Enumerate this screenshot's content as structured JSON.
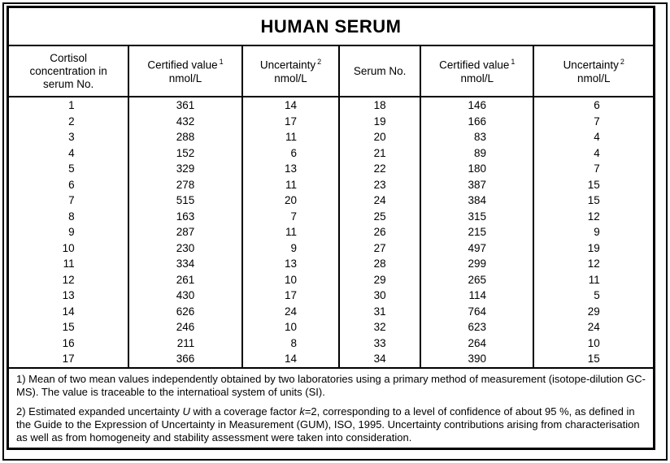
{
  "title": "HUMAN SERUM",
  "colors": {
    "border": "#000000",
    "background": "#ffffff",
    "text": "#000000"
  },
  "table": {
    "columns": [
      {
        "label": "Cortisol concentration in serum No.",
        "sup": "",
        "unit": ""
      },
      {
        "label": "Certified value",
        "sup": "1",
        "unit": "nmol/L"
      },
      {
        "label": "Uncertainty",
        "sup": "2",
        "unit": "nmol/L"
      },
      {
        "label": "Serum No.",
        "sup": "",
        "unit": ""
      },
      {
        "label": "Certified value",
        "sup": "1",
        "unit": "nmol/L"
      },
      {
        "label": "Uncertainty",
        "sup": "2",
        "unit": "nmol/L"
      }
    ],
    "rows": [
      [
        1,
        361,
        14,
        18,
        146,
        6
      ],
      [
        2,
        432,
        17,
        19,
        166,
        7
      ],
      [
        3,
        288,
        11,
        20,
        83,
        4
      ],
      [
        4,
        152,
        6,
        21,
        89,
        4
      ],
      [
        5,
        329,
        13,
        22,
        180,
        7
      ],
      [
        6,
        278,
        11,
        23,
        387,
        15
      ],
      [
        7,
        515,
        20,
        24,
        384,
        15
      ],
      [
        8,
        163,
        7,
        25,
        315,
        12
      ],
      [
        9,
        287,
        11,
        26,
        215,
        9
      ],
      [
        10,
        230,
        9,
        27,
        497,
        19
      ],
      [
        11,
        334,
        13,
        28,
        299,
        12
      ],
      [
        12,
        261,
        10,
        29,
        265,
        11
      ],
      [
        13,
        430,
        17,
        30,
        114,
        5
      ],
      [
        14,
        626,
        24,
        31,
        764,
        29
      ],
      [
        15,
        246,
        10,
        32,
        623,
        24
      ],
      [
        16,
        211,
        8,
        33,
        264,
        10
      ],
      [
        17,
        366,
        14,
        34,
        390,
        15
      ]
    ]
  },
  "footnotes": {
    "fn1": "1) Mean of two mean values independently obtained by two laboratories using a primary method of measurement (isotope-dilution GC-MS). The value is traceable to the internatioal system of units (SI).",
    "fn2_parts": {
      "p1": "2) Estimated expanded uncertainty ",
      "italic1": "U",
      "p2": " with a coverage factor ",
      "italic2": "k",
      "p3": "=2, corresponding to a level of confidence of about 95 %, as defined in the Guide to the Expression of Uncertainty in Measurement (GUM), ISO, 1995. Uncertainty contributions arising from characterisation as well as from homogeneity and stability assessment were taken into consideration."
    }
  }
}
